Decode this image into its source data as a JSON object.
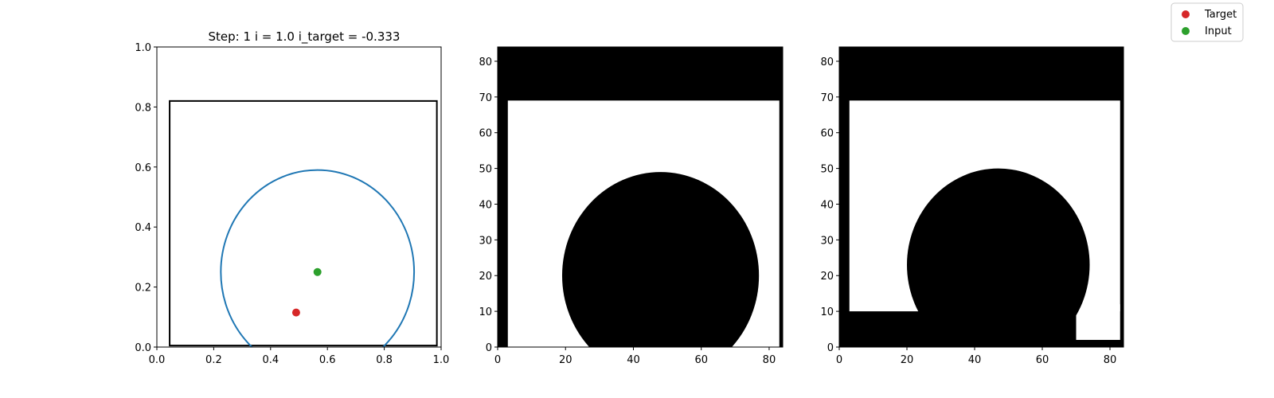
{
  "figure": {
    "legend": {
      "placement": "top-right",
      "entries": [
        {
          "label": "Target",
          "color": "#d62728"
        },
        {
          "label": "Input",
          "color": "#2ca02c"
        }
      ]
    }
  },
  "chart_data": [
    {
      "type": "scatter",
      "title": "Step: 1 i = 1.0 i_target = -0.333",
      "xlim": [
        0.0,
        1.0
      ],
      "ylim": [
        0.0,
        1.0
      ],
      "xticks": [
        "0.0",
        "0.2",
        "0.4",
        "0.6",
        "0.8",
        "1.0"
      ],
      "yticks": [
        "0.0",
        "0.2",
        "0.4",
        "0.6",
        "0.8",
        "1.0"
      ],
      "grid": false,
      "rectangle": {
        "x0": 0.045,
        "y0": 0.005,
        "x1": 0.985,
        "y1": 0.82,
        "color": "#000000"
      },
      "circle": {
        "cx": 0.565,
        "cy": 0.25,
        "r": 0.34,
        "color": "#1f77b4"
      },
      "points": [
        {
          "name": "Target",
          "x": 0.49,
          "y": 0.115,
          "color": "#d62728"
        },
        {
          "name": "Input",
          "x": 0.565,
          "y": 0.25,
          "color": "#2ca02c"
        }
      ]
    },
    {
      "type": "heatmap",
      "xlim": [
        0,
        84
      ],
      "ylim": [
        0,
        84
      ],
      "xticks": [
        "0",
        "20",
        "40",
        "60",
        "80"
      ],
      "yticks": [
        "0",
        "10",
        "20",
        "30",
        "40",
        "50",
        "60",
        "70",
        "80"
      ],
      "colormap": "gray",
      "regions": [
        {
          "shape": "rect",
          "x0": 0,
          "x1": 84,
          "y0": 0,
          "y1": 84,
          "value": "black"
        },
        {
          "shape": "rect",
          "x0": 3,
          "x1": 83,
          "y0": 0,
          "y1": 69,
          "value": "white"
        },
        {
          "shape": "disk",
          "cx": 48,
          "cy": 20,
          "r": 29,
          "value": "black"
        }
      ]
    },
    {
      "type": "heatmap",
      "xlim": [
        0,
        84
      ],
      "ylim": [
        0,
        84
      ],
      "xticks": [
        "0",
        "20",
        "40",
        "60",
        "80"
      ],
      "yticks": [
        "0",
        "10",
        "20",
        "30",
        "40",
        "50",
        "60",
        "70",
        "80"
      ],
      "colormap": "gray",
      "regions": [
        {
          "shape": "rect",
          "x0": 0,
          "x1": 84,
          "y0": 0,
          "y1": 84,
          "value": "black"
        },
        {
          "shape": "rect",
          "x0": 3,
          "x1": 83,
          "y0": 10,
          "y1": 69,
          "value": "white"
        },
        {
          "shape": "rect",
          "x0": 70,
          "x1": 83,
          "y0": 2,
          "y1": 12,
          "value": "white"
        },
        {
          "shape": "disk",
          "cx": 47,
          "cy": 23,
          "r": 27,
          "value": "black"
        }
      ]
    }
  ]
}
